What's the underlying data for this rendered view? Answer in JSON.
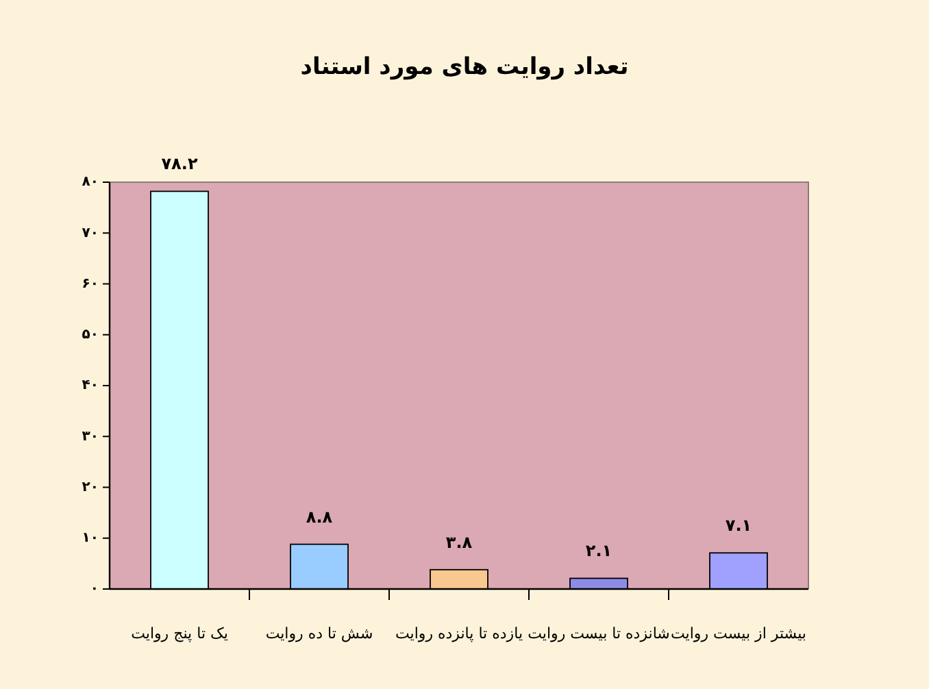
{
  "chart_data": {
    "type": "bar",
    "title": "تعداد روایت های مورد استناد",
    "categories": [
      "یک تا پنج روایت",
      "شش تا ده روایت",
      "یازده تا پانزده روایت",
      "شانزده تا بیست روایت",
      "بیشتر از بیست روایت"
    ],
    "values": [
      78.2,
      8.8,
      3.8,
      2.1,
      7.1
    ],
    "colors": [
      "#ccffff",
      "#99ccff",
      "#f9c890",
      "#8c8ce6",
      "#a0a0ff"
    ],
    "value_labels": [
      "۷۸.۲",
      "۸.۸",
      "۳.۸",
      "۲.۱",
      "۷.۱"
    ],
    "ylim": [
      0,
      80
    ],
    "yticks": [
      {
        "value": 0,
        "label": "۰"
      },
      {
        "value": 10,
        "label": "۱۰"
      },
      {
        "value": 20,
        "label": "۲۰"
      },
      {
        "value": 30,
        "label": "۳۰"
      },
      {
        "value": 40,
        "label": "۴۰"
      },
      {
        "value": 50,
        "label": "۵۰"
      },
      {
        "value": 60,
        "label": "۶۰"
      },
      {
        "value": 70,
        "label": "۷۰"
      },
      {
        "value": 80,
        "label": "۸۰"
      }
    ]
  }
}
